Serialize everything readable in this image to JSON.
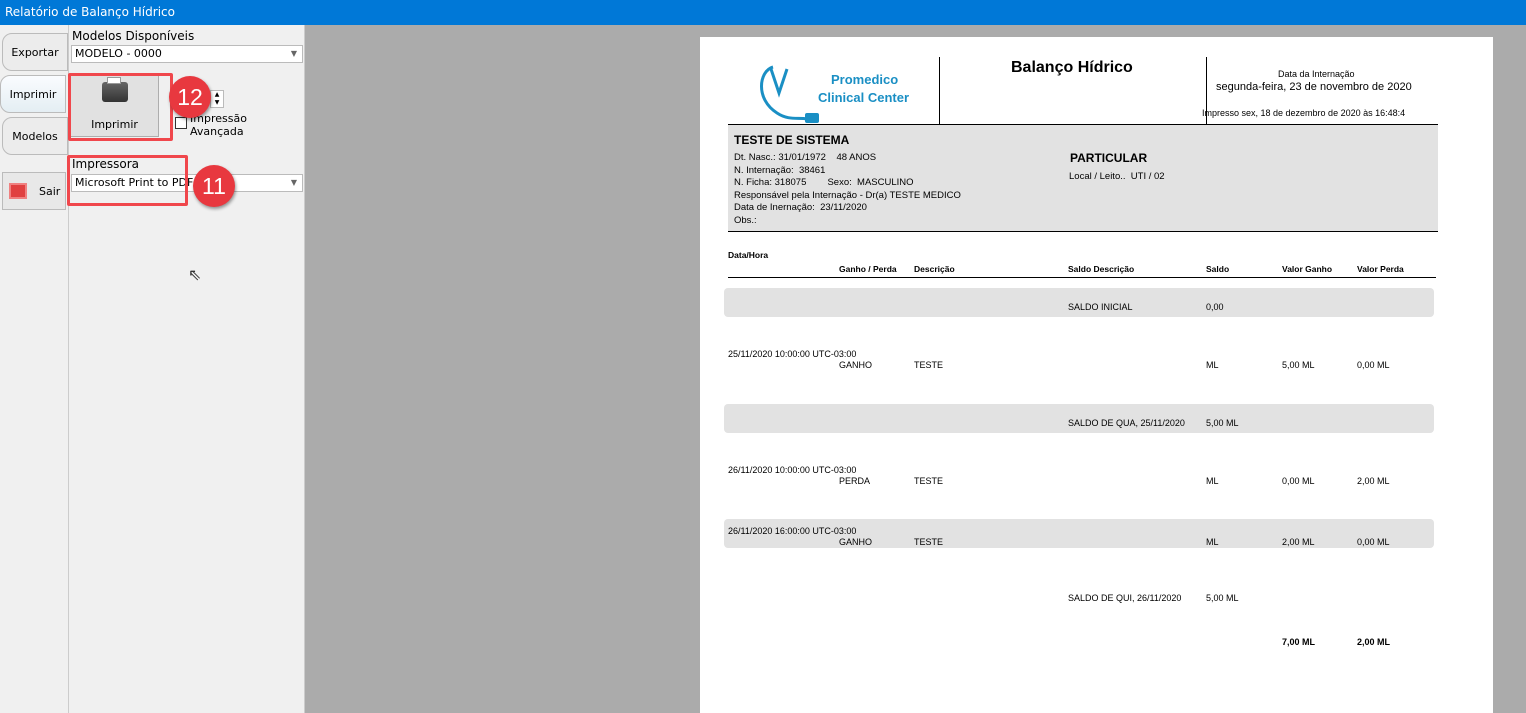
{
  "window": {
    "title": "Relatório de Balanço Hídrico"
  },
  "tabs": [
    {
      "label": "Exportar"
    },
    {
      "label": "Imprimir"
    },
    {
      "label": "Modelos"
    }
  ],
  "sair": {
    "label": "Sair"
  },
  "panel": {
    "models_label": "Modelos Disponíveis",
    "model_value": "MODELO - 0000",
    "print_button": "Imprimir",
    "advanced_label": "Impressão Avançada",
    "copies_label": ":",
    "printer_label": "Impressora",
    "printer_value": "Microsoft Print to PDF"
  },
  "annotations": {
    "print": "12",
    "printer": "11",
    "color": "#e8383f"
  },
  "report": {
    "logo_line1": "Promedico",
    "logo_line2": "Clinical Center",
    "title": "Balanço Hídrico",
    "adm_label": "Data da Internação",
    "adm_date": "segunda-feira, 23 de novembro de 2020",
    "printed": "Impresso sex, 18 de dezembro de 2020 às 16:48:4",
    "patient": "TESTE DE SISTEMA",
    "p1": "Dt. Nasc.: 31/01/1972    48 ANOS",
    "p2": "N. Internação:  38461",
    "p3": "N. Ficha: 318075        Sexo:  MASCULINO",
    "p4": "Responsável pela Internação - Dr(a)  TESTE MEDICO",
    "p5": "Data de Inernação:  23/11/2020",
    "p6": "Obs.:",
    "insurance": "PARTICULAR",
    "location": "Local / Leito..  UTI / 02",
    "columns": [
      "Data/Hora",
      "Ganho / Perda",
      "Descrição",
      "Saldo Descrição",
      "Saldo",
      "Valor Ganho",
      "Valor Perda"
    ],
    "rows": [
      {
        "datetime": "",
        "type": "",
        "desc": "",
        "saldo_desc": "SALDO INICIAL",
        "saldo": "0,00",
        "ganho": "",
        "perda": ""
      },
      {
        "datetime": "25/11/2020 10:00:00 UTC-03:00",
        "type": "GANHO",
        "desc": "TESTE",
        "saldo_desc": "",
        "saldo": "ML",
        "ganho": "5,00 ML",
        "perda": "0,00 ML"
      },
      {
        "datetime": "",
        "type": "",
        "desc": "",
        "saldo_desc": "SALDO DE QUA, 25/11/2020",
        "saldo": "5,00 ML",
        "ganho": "",
        "perda": ""
      },
      {
        "datetime": "26/11/2020 10:00:00 UTC-03:00",
        "type": "PERDA",
        "desc": "TESTE",
        "saldo_desc": "",
        "saldo": "ML",
        "ganho": "0,00 ML",
        "perda": "2,00 ML"
      },
      {
        "datetime": "26/11/2020 16:00:00 UTC-03:00",
        "type": "GANHO",
        "desc": "TESTE",
        "saldo_desc": "",
        "saldo": "ML",
        "ganho": "2,00 ML",
        "perda": "0,00 ML"
      },
      {
        "datetime": "",
        "type": "",
        "desc": "",
        "saldo_desc": "SALDO DE QUI, 26/11/2020",
        "saldo": "5,00 ML",
        "ganho": "",
        "perda": ""
      }
    ],
    "total_ganho": "7,00 ML",
    "total_perda": "2,00 ML",
    "logo_color": "#1a8fc4"
  }
}
